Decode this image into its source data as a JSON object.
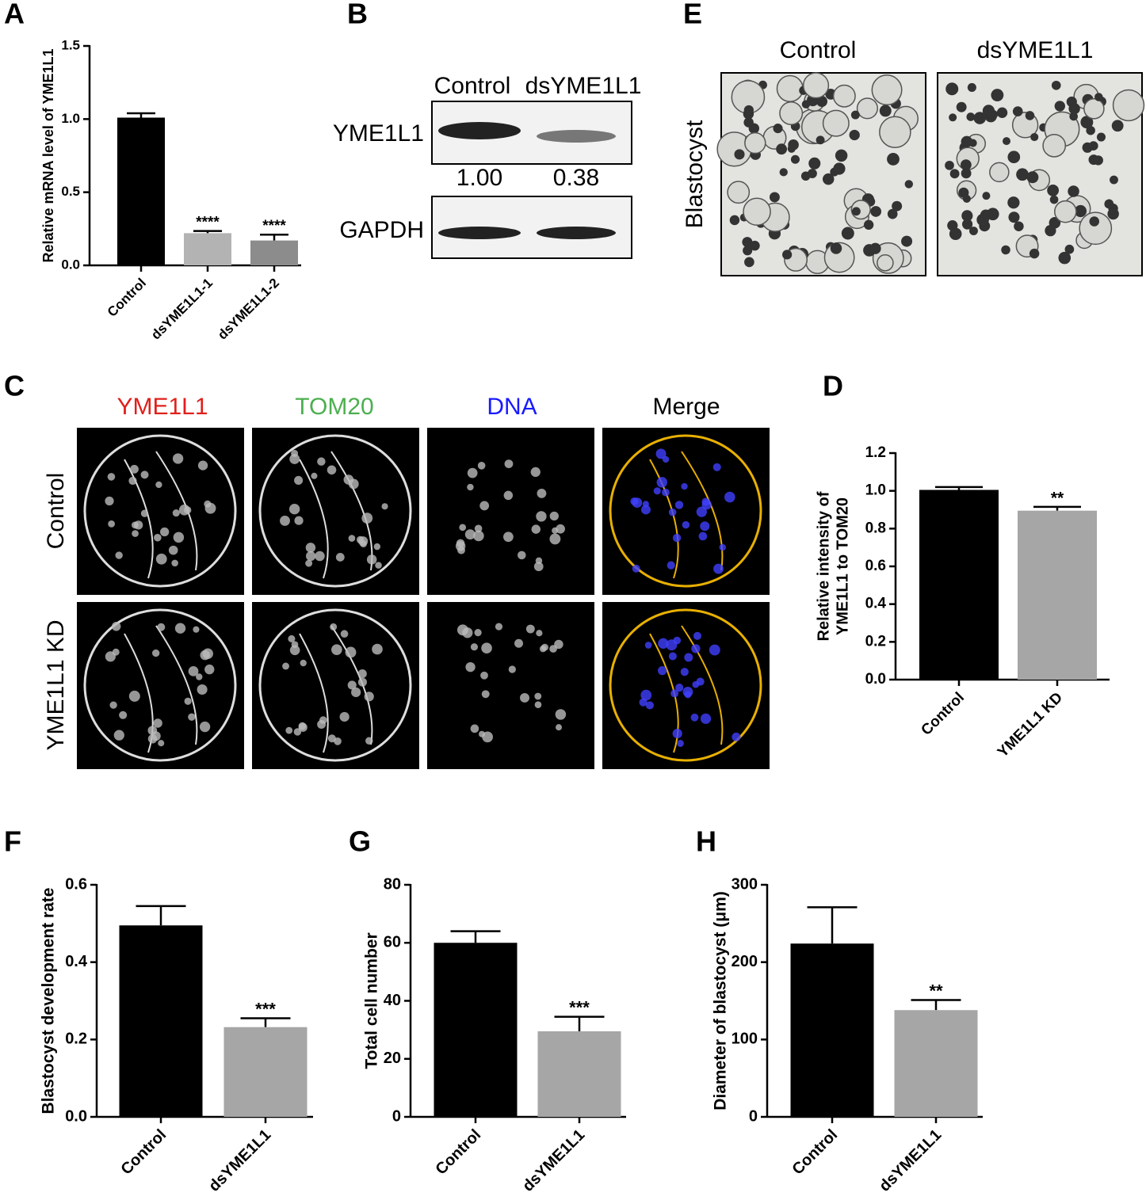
{
  "chart_data": [
    {
      "type": "bar",
      "label": "A",
      "y_label": "Relative mRNA level of YME1L1",
      "categories": [
        "Control",
        "dsYME1L1-1",
        "dsYME1L1-2"
      ],
      "values": [
        1.01,
        0.22,
        0.17
      ],
      "errors": [
        0.03,
        0.015,
        0.04
      ],
      "annotations": [
        null,
        "****",
        "****"
      ],
      "colors": [
        "#000000",
        "#b3b3b3",
        "#8c8c8c"
      ],
      "ylim": [
        0,
        1.5
      ],
      "yticks": [
        {
          "value": 0,
          "label": "0.0"
        },
        0.5,
        {
          "value": 1,
          "label": "1.0"
        },
        1.5
      ]
    },
    {
      "type": "bar",
      "label": "D",
      "y_label": [
        "Relative intensity of",
        "YME1L1 to TOM20"
      ],
      "categories": [
        "Control",
        "YME1L1 KD"
      ],
      "values": [
        1.005,
        0.895
      ],
      "errors": [
        0.015,
        0.02
      ],
      "annotations": [
        null,
        "**"
      ],
      "colors": [
        "#000000",
        "#a6a6a6"
      ],
      "ylim": [
        0,
        1.2
      ],
      "yticks": [
        {
          "value": 0,
          "label": "0.0"
        },
        0.2,
        0.4,
        0.6,
        0.8,
        {
          "value": 1,
          "label": "1.0"
        },
        1.2
      ]
    },
    {
      "type": "bar",
      "label": "F",
      "y_label": "Blastocyst development rate",
      "categories": [
        "Control",
        "dsYME1L1"
      ],
      "values": [
        0.495,
        0.232
      ],
      "errors": [
        0.05,
        0.023
      ],
      "annotations": [
        null,
        "***"
      ],
      "colors": [
        "#000000",
        "#a6a6a6"
      ],
      "ylim": [
        0,
        0.6
      ],
      "yticks": [
        {
          "value": 0,
          "label": "0.0"
        },
        0.2,
        0.4,
        0.6
      ]
    },
    {
      "type": "bar",
      "label": "G",
      "y_label": "Total cell number",
      "categories": [
        "Control",
        "dsYME1L1"
      ],
      "values": [
        60,
        29.5
      ],
      "errors": [
        4,
        5
      ],
      "annotations": [
        null,
        "***"
      ],
      "colors": [
        "#000000",
        "#a6a6a6"
      ],
      "ylim": [
        0,
        80
      ],
      "yticks": [
        0,
        20,
        40,
        60,
        80
      ]
    },
    {
      "type": "bar",
      "label": "H",
      "y_label": "Diameter of blastocyst (μm)",
      "categories": [
        "Control",
        "dsYME1L1"
      ],
      "values": [
        224,
        138
      ],
      "errors": [
        47,
        13
      ],
      "annotations": [
        null,
        "**"
      ],
      "colors": [
        "#000000",
        "#a6a6a6"
      ],
      "ylim": [
        0,
        300
      ],
      "yticks": [
        0,
        100,
        200,
        300
      ]
    }
  ],
  "blot": {
    "label": "B",
    "columns": [
      "Control",
      "dsYME1L1"
    ],
    "rows": [
      "YME1L1",
      "GAPDH"
    ],
    "quantification": [
      "1.00",
      "0.38"
    ]
  },
  "immunofluorescence": {
    "label": "C",
    "columns": [
      {
        "text": "YME1L1",
        "color": "#e0201b"
      },
      {
        "text": "TOM20",
        "color": "#4caf50"
      },
      {
        "text": "DNA",
        "color": "#1a1aff"
      },
      {
        "text": "Merge",
        "color": "#000000"
      }
    ],
    "rows": [
      "Control",
      "YME1L1 KD"
    ]
  },
  "blastocyst_images": {
    "label": "E",
    "columns": [
      "Control",
      "dsYME1L1"
    ],
    "row": "Blastocyst"
  }
}
